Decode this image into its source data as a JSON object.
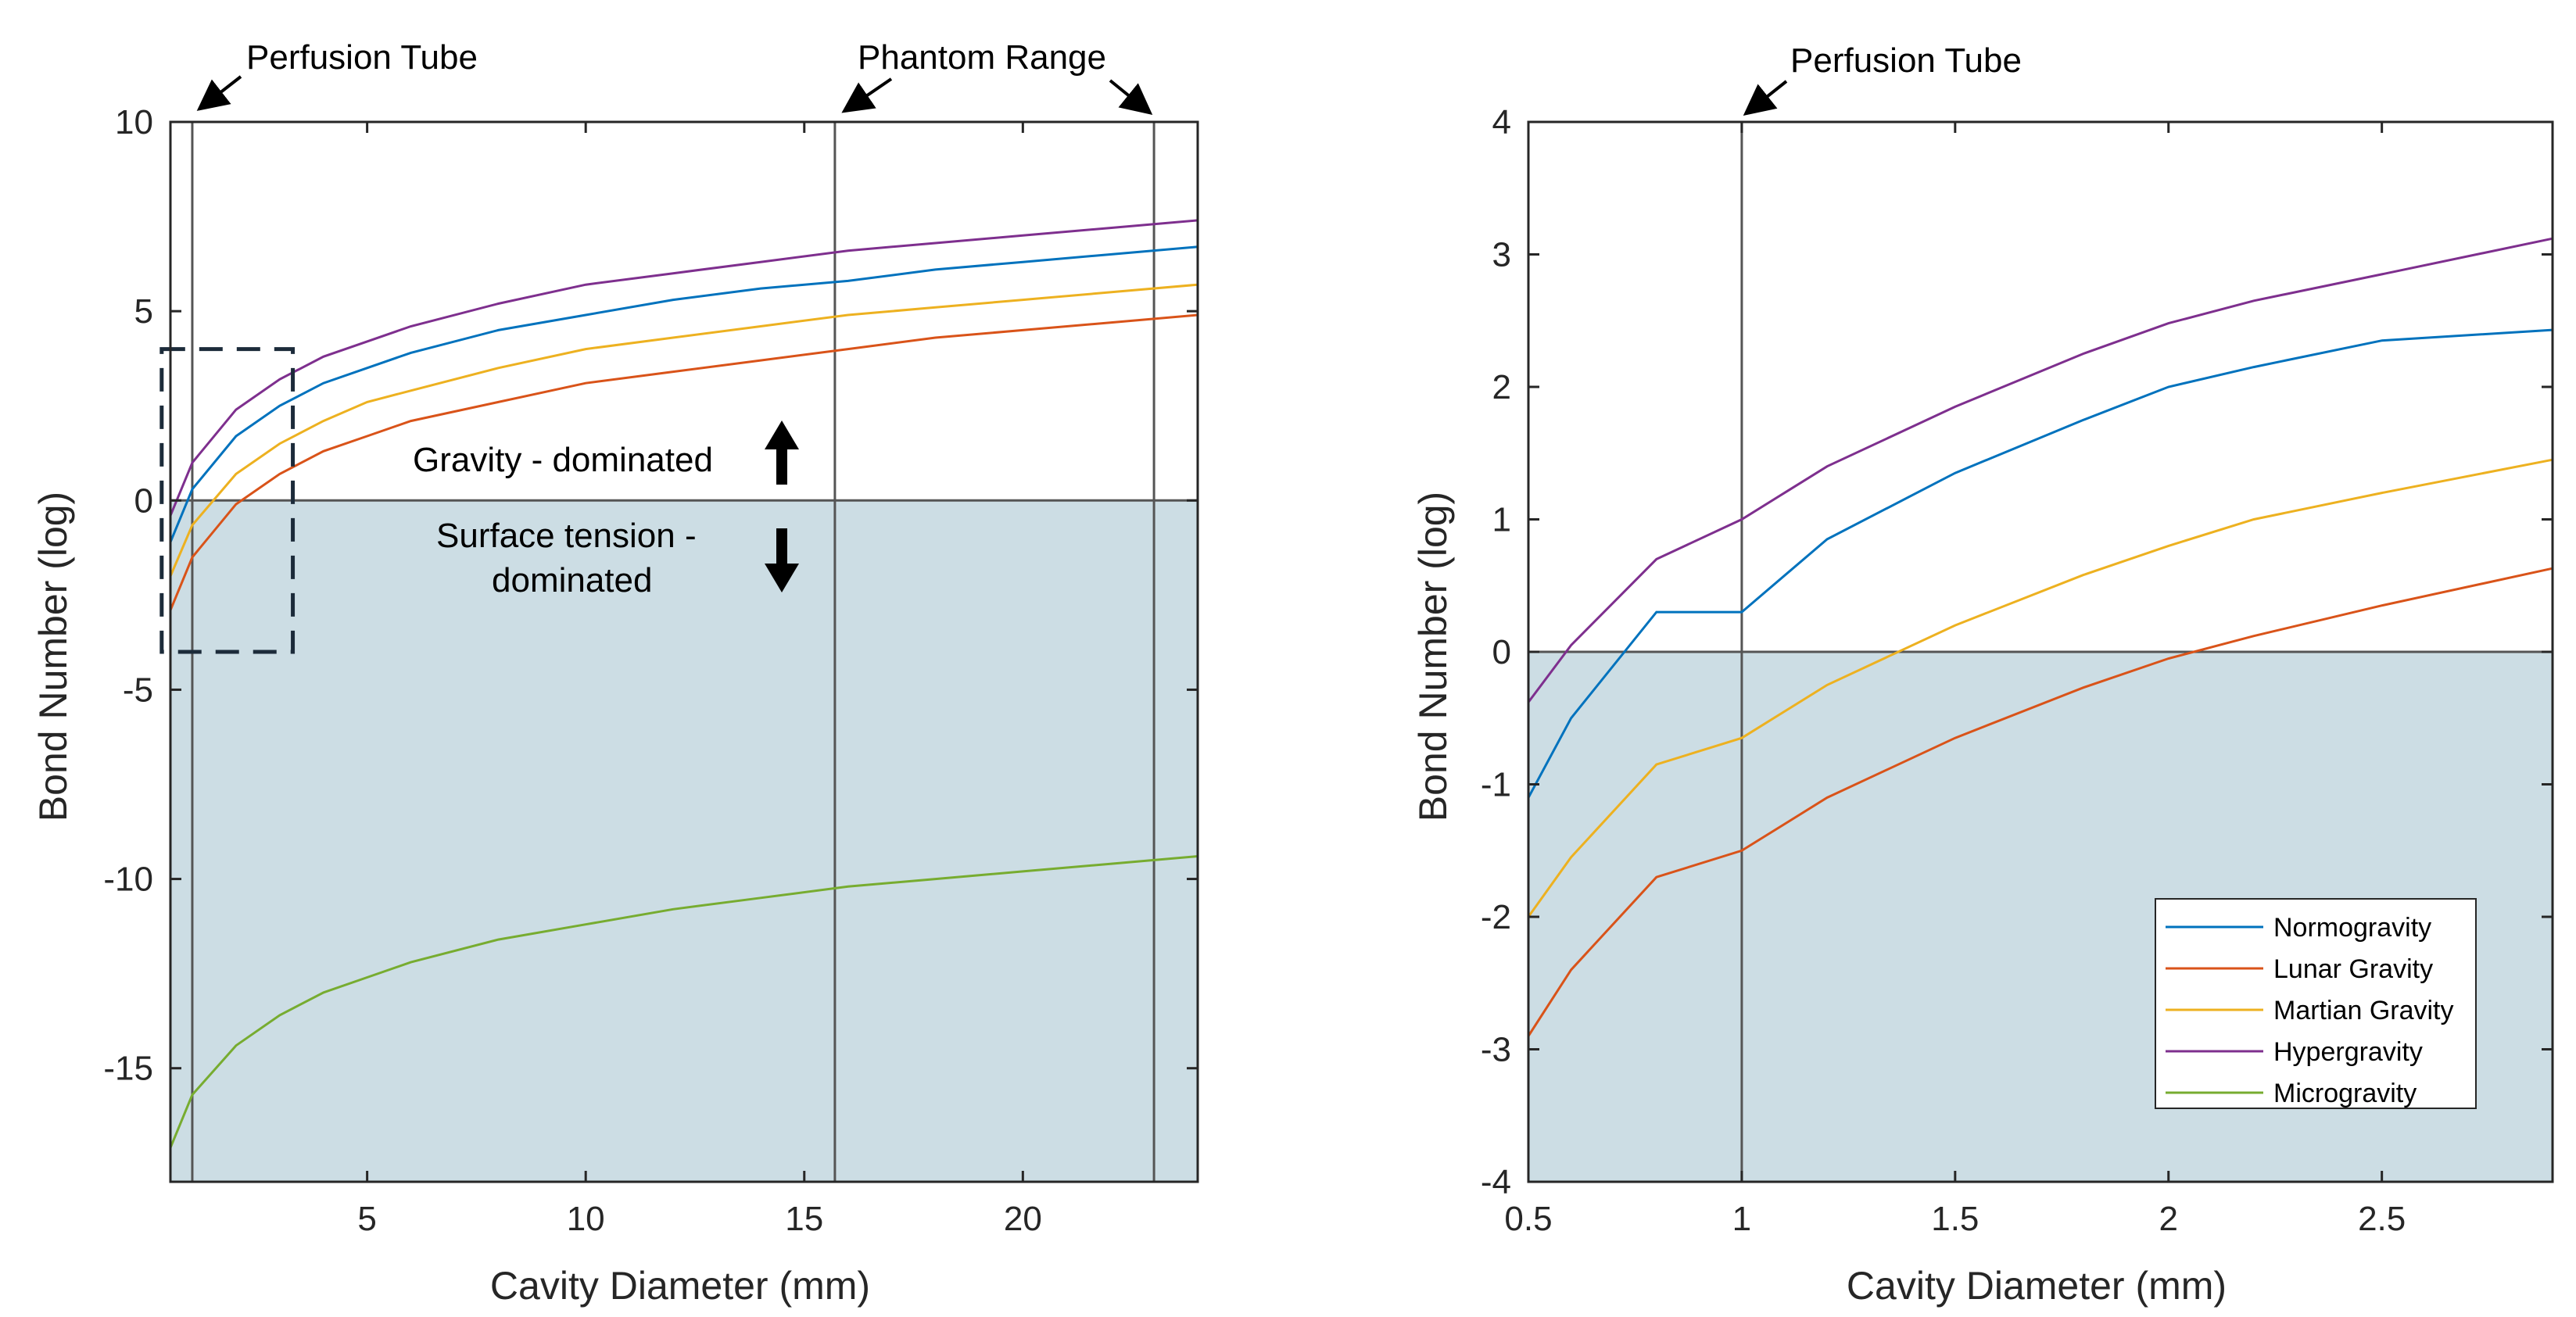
{
  "chart_data": [
    {
      "type": "line",
      "xlabel": "Cavity Diameter (mm)",
      "ylabel": "Bond Number (log)",
      "xlim": [
        0.5,
        24
      ],
      "ylim": [
        -18,
        10
      ],
      "xticks": [
        5,
        10,
        15,
        20
      ],
      "yticks": [
        10,
        5,
        0,
        -5,
        -10,
        -15
      ],
      "shaded_region": {
        "from": -18,
        "to": 0,
        "color": "#ccdde4"
      },
      "vlines": [
        1,
        15.7,
        23
      ],
      "series": [
        {
          "name": "Hypergravity",
          "color": "#7e2f8e",
          "x": [
            0.5,
            1,
            2,
            3,
            4,
            5,
            6,
            8,
            10,
            12,
            14,
            16,
            18,
            20,
            22,
            24
          ],
          "values": [
            -0.4,
            1.0,
            2.4,
            3.2,
            3.8,
            4.2,
            4.6,
            5.2,
            5.7,
            6.0,
            6.3,
            6.6,
            6.8,
            7.0,
            7.2,
            7.4
          ]
        },
        {
          "name": "Normogravity",
          "color": "#0072bd",
          "x": [
            0.5,
            1,
            2,
            3,
            4,
            5,
            6,
            8,
            10,
            12,
            14,
            16,
            18,
            20,
            22,
            24
          ],
          "values": [
            -1.1,
            0.3,
            1.7,
            2.5,
            3.1,
            3.5,
            3.9,
            4.5,
            4.9,
            5.3,
            5.6,
            5.8,
            6.1,
            6.3,
            6.5,
            6.7
          ]
        },
        {
          "name": "Martian Gravity",
          "color": "#edb120",
          "x": [
            0.5,
            1,
            2,
            3,
            4,
            5,
            6,
            8,
            10,
            12,
            14,
            16,
            18,
            20,
            22,
            24
          ],
          "values": [
            -2.0,
            -0.65,
            0.7,
            1.5,
            2.1,
            2.6,
            2.9,
            3.5,
            4.0,
            4.3,
            4.6,
            4.9,
            5.1,
            5.3,
            5.5,
            5.7
          ]
        },
        {
          "name": "Lunar Gravity",
          "color": "#d95319",
          "x": [
            0.5,
            1,
            2,
            3,
            4,
            5,
            6,
            8,
            10,
            12,
            14,
            16,
            18,
            20,
            22,
            24
          ],
          "values": [
            -2.9,
            -1.5,
            -0.1,
            0.7,
            1.3,
            1.7,
            2.1,
            2.6,
            3.1,
            3.4,
            3.7,
            4.0,
            4.3,
            4.5,
            4.7,
            4.9
          ]
        },
        {
          "name": "Microgravity",
          "color": "#77ac30",
          "x": [
            0.5,
            1,
            2,
            3,
            4,
            5,
            6,
            8,
            10,
            12,
            14,
            16,
            18,
            20,
            22,
            24
          ],
          "values": [
            -17.1,
            -15.7,
            -14.4,
            -13.6,
            -13.0,
            -12.6,
            -12.2,
            -11.6,
            -11.2,
            -10.8,
            -10.5,
            -10.2,
            -10.0,
            -9.8,
            -9.6,
            -9.4
          ]
        }
      ],
      "annotations": {
        "perfusion_tube": "Perfusion Tube",
        "phantom_range": "Phantom Range",
        "gravity_dominated": "Gravity - dominated",
        "surface_tension_line1": "Surface tension -",
        "surface_tension_line2": "dominated"
      },
      "inset_box": {
        "x_range": [
          0.3,
          3.3
        ],
        "y_range": [
          -4,
          4
        ]
      }
    },
    {
      "type": "line",
      "xlabel": "Cavity Diameter (mm)",
      "ylabel": "Bond Number (log)",
      "xlim": [
        0.5,
        2.9
      ],
      "ylim": [
        -4,
        4
      ],
      "xticks": [
        0.5,
        1,
        1.5,
        2,
        2.5
      ],
      "yticks": [
        4,
        3,
        2,
        1,
        0,
        -1,
        -2,
        -3,
        -4
      ],
      "shaded_region": {
        "from": -4,
        "to": 0,
        "color": "#ccdde4"
      },
      "vlines": [
        1
      ],
      "series": [
        {
          "name": "Normogravity",
          "color": "#0072bd",
          "x": [
            0.5,
            0.6,
            0.8,
            1.0,
            1.2,
            1.5,
            1.8,
            2.0,
            2.2,
            2.5,
            2.9
          ],
          "values": [
            -1.1,
            -0.5,
            0.3,
            0.3,
            0.85,
            1.35,
            1.75,
            2.0,
            2.15,
            2.35,
            2.43
          ]
        },
        {
          "name": "Lunar Gravity",
          "color": "#d95319",
          "x": [
            0.5,
            0.6,
            0.8,
            1.0,
            1.2,
            1.5,
            1.8,
            2.0,
            2.2,
            2.5,
            2.9
          ],
          "values": [
            -2.9,
            -2.4,
            -1.7,
            -1.5,
            -1.1,
            -0.65,
            -0.27,
            -0.05,
            0.12,
            0.35,
            0.63
          ]
        },
        {
          "name": "Martian Gravity",
          "color": "#edb120",
          "x": [
            0.5,
            0.6,
            0.8,
            1.0,
            1.2,
            1.5,
            1.8,
            2.0,
            2.2,
            2.5,
            2.9
          ],
          "values": [
            -2.0,
            -1.55,
            -0.85,
            -0.65,
            -0.25,
            0.2,
            0.58,
            0.8,
            1.0,
            1.2,
            1.45
          ]
        },
        {
          "name": "Hypergravity",
          "color": "#7e2f8e",
          "x": [
            0.5,
            0.6,
            0.8,
            1.0,
            1.2,
            1.5,
            1.8,
            2.0,
            2.2,
            2.5,
            2.9
          ],
          "values": [
            -0.38,
            0.05,
            0.7,
            1.0,
            1.4,
            1.85,
            2.25,
            2.48,
            2.65,
            2.85,
            3.12
          ]
        }
      ],
      "legend": {
        "placement": "lower-right",
        "entries": [
          {
            "name": "Normogravity",
            "color": "#0072bd"
          },
          {
            "name": "Lunar Gravity",
            "color": "#d95319"
          },
          {
            "name": "Martian Gravity",
            "color": "#edb120"
          },
          {
            "name": "Hypergravity",
            "color": "#7e2f8e"
          },
          {
            "name": "Microgravity",
            "color": "#77ac30"
          }
        ]
      },
      "annotations": {
        "perfusion_tube": "Perfusion Tube"
      }
    }
  ]
}
